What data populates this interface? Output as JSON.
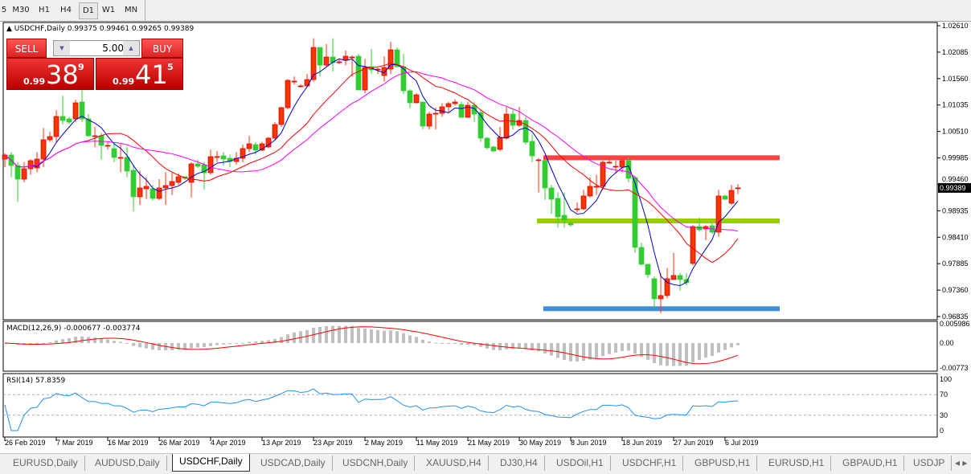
{
  "timeframes": {
    "items": [
      "5",
      "M30",
      "H1",
      "H4",
      "D1",
      "W1",
      "MN"
    ],
    "active": 4
  },
  "chart_header": {
    "symbol": "USDCHF,Daily",
    "ohlc": "0.99375 0.99461 0.99265 0.99389"
  },
  "trade_panel": {
    "sell_label": "SELL",
    "buy_label": "BUY",
    "lot_value": "5.00",
    "sell_price": {
      "prefix": "0.99",
      "big": "38",
      "sup": "9"
    },
    "buy_price": {
      "prefix": "0.99",
      "big": "41",
      "sup": "5"
    }
  },
  "macd_header": "MACD(12,26,9) -0.000677 -0.003774",
  "rsi_header": "RSI(14) 57.8359",
  "bottom_tabs": {
    "items": [
      "EURUSD,Daily",
      "AUDUSD,Daily",
      "USDCHF,Daily",
      "USDCAD,Daily",
      "USDCNH,Daily",
      "XAUUSD,H4",
      "DJ30,H4",
      "USDOil,H1",
      "USDCHF,H1",
      "GBPUSD,H1",
      "EURUSD,H1",
      "GBPAUD,H1",
      "USDJP"
    ],
    "active": 2
  },
  "colors": {
    "bull": "#ff3300",
    "bear": "#33cc33",
    "ma_fast": "#0000cc",
    "ma_mid": "#ff0000",
    "ma_slow": "#ff00ff",
    "macd_hist": "#c0c0c0",
    "macd_signal": "#ff0000",
    "rsi": "#1e90ff"
  },
  "chart_data": {
    "type": "candlestick",
    "y_range": [
      0.96835,
      1.0261
    ],
    "y_ticks": [
      "1.02610",
      "1.02085",
      "1.01560",
      "1.01035",
      "1.00510",
      "0.99985",
      "0.99460",
      "0.98935",
      "0.98410",
      "0.97885",
      "0.97360",
      "0.96835"
    ],
    "current_price": "0.99389",
    "x_labels": [
      {
        "bar": 0,
        "label": "26 Feb 2019"
      },
      {
        "bar": 8,
        "label": "7 Mar 2019"
      },
      {
        "bar": 16,
        "label": "16 Mar 2019"
      },
      {
        "bar": 24,
        "label": "26 Mar 2019"
      },
      {
        "bar": 32,
        "label": "4 Apr 2019"
      },
      {
        "bar": 40,
        "label": "13 Apr 2019"
      },
      {
        "bar": 48,
        "label": "23 Apr 2019"
      },
      {
        "bar": 56,
        "label": "2 May 2019"
      },
      {
        "bar": 64,
        "label": "11 May 2019"
      },
      {
        "bar": 72,
        "label": "21 May 2019"
      },
      {
        "bar": 80,
        "label": "30 May 2019"
      },
      {
        "bar": 88,
        "label": "8 Jun 2019"
      },
      {
        "bar": 96,
        "label": "18 Jun 2019"
      },
      {
        "bar": 104,
        "label": "27 Jun 2019"
      },
      {
        "bar": 112,
        "label": "6 Jul 2019"
      }
    ],
    "levels": [
      {
        "name": "resistance",
        "price": 0.99988,
        "color": "#ff4040",
        "from_bar": 84
      },
      {
        "name": "middle",
        "price": 0.98733,
        "color": "#99cc00",
        "from_bar": 83
      },
      {
        "name": "support",
        "price": 0.9699,
        "color": "#3d8fdc",
        "from_bar": 84
      }
    ],
    "moving_averages": [
      5,
      13,
      21
    ],
    "bars": [
      [
        0.99962,
        1.0008,
        0.998,
        1.00042
      ],
      [
        1.00042,
        1.001,
        0.996,
        0.99834
      ],
      [
        0.99834,
        0.999,
        0.9911,
        0.99563
      ],
      [
        0.99563,
        0.999,
        0.995,
        0.9977
      ],
      [
        0.9977,
        0.9996,
        0.9965,
        0.9993
      ],
      [
        0.99786,
        1.001,
        0.997,
        0.99962
      ],
      [
        0.99962,
        1.0058,
        0.998,
        1.00345
      ],
      [
        1.00345,
        1.005,
        1.003,
        1.00409
      ],
      [
        1.00409,
        1.0093,
        1.003,
        1.00808
      ],
      [
        1.00808,
        1.0122,
        1.0065,
        1.00728
      ],
      [
        1.0076,
        1.008,
        1.0066,
        1.00696
      ],
      [
        1.0076,
        1.0114,
        1.007,
        1.01079
      ],
      [
        1.01095,
        1.0133,
        1.007,
        1.0076
      ],
      [
        1.0076,
        1.0086,
        1.004,
        1.00425
      ],
      [
        1.00425,
        1.006,
        1.002,
        1.00425
      ],
      [
        1.00425,
        1.0048,
        0.9995,
        1.00233
      ],
      [
        1.00233,
        1.003,
        1.0015,
        1.00233
      ],
      [
        1.0017,
        1.003,
        0.999,
        0.99994
      ],
      [
        0.99994,
        1.0025,
        0.997,
        0.99994
      ],
      [
        0.99994,
        1.002,
        0.996,
        0.99723
      ],
      [
        0.99739,
        0.9985,
        0.9892,
        0.99213
      ],
      [
        0.99213,
        0.9973,
        0.9905,
        0.99388
      ],
      [
        0.99372,
        0.996,
        0.9917,
        0.9942
      ],
      [
        0.99372,
        0.9945,
        0.9914,
        0.99181
      ],
      [
        0.99181,
        0.9956,
        0.9915,
        0.99388
      ],
      [
        0.99388,
        0.997,
        0.9905,
        0.99436
      ],
      [
        0.99436,
        0.997,
        0.9925,
        0.99516
      ],
      [
        0.995,
        0.9968,
        0.9945,
        0.99611
      ],
      [
        0.99611,
        0.9962,
        0.9955,
        0.99579
      ],
      [
        0.995,
        0.999,
        0.992,
        0.99866
      ],
      [
        0.99866,
        0.9995,
        0.9978,
        0.99818
      ],
      [
        0.9985,
        0.999,
        0.9936,
        0.99691
      ],
      [
        0.99691,
        1.0015,
        0.9965,
        1.0001
      ],
      [
        1.0001,
        1.0012,
        0.999,
        1.0001
      ],
      [
        1.00026,
        1.001,
        0.9983,
        0.99962
      ],
      [
        0.99978,
        1.0005,
        0.998,
        0.99914
      ],
      [
        0.99914,
        1.001,
        0.9985,
        0.99978
      ],
      [
        0.99978,
        1.0025,
        0.999,
        1.0017
      ],
      [
        1.0017,
        1.0042,
        1.001,
        1.00265
      ],
      [
        1.00249,
        1.003,
        1.0005,
        1.00138
      ],
      [
        1.00138,
        1.003,
        1.0012,
        1.00265
      ],
      [
        1.00202,
        1.004,
        1.0018,
        1.00377
      ],
      [
        1.00377,
        1.007,
        1.0035,
        1.00648
      ],
      [
        1.00648,
        1.01,
        1.006,
        1.00983
      ],
      [
        1.00983,
        1.0155,
        1.0095,
        1.01525
      ],
      [
        1.01509,
        1.016,
        1.0144,
        1.01509
      ],
      [
        1.01414,
        1.0145,
        1.0138,
        1.01414
      ],
      [
        1.01414,
        1.0165,
        1.014,
        1.01541
      ],
      [
        1.01541,
        1.0236,
        1.015,
        1.02179
      ],
      [
        1.02179,
        1.0218,
        1.016,
        1.01828
      ],
      [
        1.01828,
        1.0225,
        1.018,
        1.01988
      ],
      [
        1.01988,
        1.0236,
        1.017,
        1.01876
      ],
      [
        1.01892,
        1.0195,
        1.0185,
        1.01892
      ],
      [
        1.01924,
        1.0212,
        1.0182,
        1.02004
      ],
      [
        1.01988,
        1.0202,
        1.016,
        1.01988
      ],
      [
        1.02004,
        1.0205,
        1.0133,
        1.01334
      ],
      [
        1.01334,
        1.0195,
        1.0127,
        1.01781
      ],
      [
        1.01797,
        1.0215,
        1.0165,
        1.01733
      ],
      [
        1.01749,
        1.0178,
        1.0165,
        1.01749
      ],
      [
        1.01621,
        1.02,
        1.015,
        1.01781
      ],
      [
        1.01749,
        1.0229,
        1.0165,
        1.02132
      ],
      [
        1.02132,
        1.0218,
        1.0178,
        1.01797
      ],
      [
        1.01797,
        1.0205,
        1.0125,
        1.01318
      ],
      [
        1.01318,
        1.0135,
        1.0097,
        1.01079
      ],
      [
        1.01079,
        1.0127,
        1.0107,
        1.01238
      ],
      [
        1.01095,
        1.011,
        1.0055,
        1.00616
      ],
      [
        1.00616,
        1.009,
        1.0055,
        1.00855
      ],
      [
        1.00871,
        1.0098,
        1.0055,
        1.00871
      ],
      [
        1.00871,
        1.0107,
        1.008,
        1.00999
      ],
      [
        1.00999,
        1.011,
        1.009,
        1.01063
      ],
      [
        1.01063,
        1.0115,
        1.0102,
        1.01095
      ],
      [
        1.01047,
        1.011,
        1.0078,
        1.00792
      ],
      [
        1.00792,
        1.011,
        1.0078,
        1.01031
      ],
      [
        1.01031,
        1.011,
        1.007,
        1.00855
      ],
      [
        1.00887,
        1.0095,
        1.003,
        1.00377
      ],
      [
        1.00377,
        1.004,
        1.0015,
        1.00186
      ],
      [
        1.00202,
        1.0023,
        1.001,
        1.00122
      ],
      [
        1.00154,
        1.006,
        1.0012,
        1.00393
      ],
      [
        1.00377,
        1.01,
        1.0035,
        1.00855
      ],
      [
        1.00855,
        1.0094,
        1.0055,
        1.00632
      ],
      [
        1.00632,
        1.01,
        1.006,
        1.00728
      ],
      [
        1.00728,
        1.008,
        1.0025,
        1.00297
      ],
      [
        1.00313,
        1.0045,
        0.999,
        1.00026
      ],
      [
        0.99946,
        0.9998,
        0.993,
        0.99946
      ],
      [
        0.9993,
        0.9995,
        0.9915,
        0.99388
      ],
      [
        0.99388,
        0.9945,
        0.9887,
        0.99165
      ],
      [
        0.99181,
        0.993,
        0.986,
        0.98814
      ],
      [
        0.98846,
        0.993,
        0.986,
        0.9875
      ],
      [
        0.98686,
        0.9872,
        0.9862,
        0.98654
      ],
      [
        0.98973,
        0.991,
        0.989,
        0.98973
      ],
      [
        0.98973,
        0.9935,
        0.9895,
        0.99229
      ],
      [
        0.99229,
        0.996,
        0.992,
        0.9942
      ],
      [
        0.9942,
        0.9965,
        0.9925,
        0.9942
      ],
      [
        0.9942,
        0.9993,
        0.9935,
        0.99898
      ],
      [
        0.99898,
        0.9995,
        0.9987,
        0.99898
      ],
      [
        0.99818,
        0.9993,
        0.997,
        0.99818
      ],
      [
        0.99802,
        0.9998,
        0.997,
        0.9993
      ],
      [
        0.9993,
        1.0,
        0.995,
        0.99579
      ],
      [
        0.99595,
        0.9963,
        0.981,
        0.98208
      ],
      [
        0.98208,
        0.983,
        0.9785,
        0.97873
      ],
      [
        0.97873,
        0.9785,
        0.976,
        0.97666
      ],
      [
        0.97586,
        0.9763,
        0.97,
        0.97187
      ],
      [
        0.97187,
        0.977,
        0.969,
        0.97251
      ],
      [
        0.97251,
        0.978,
        0.972,
        0.97586
      ],
      [
        0.9757,
        0.981,
        0.976,
        0.9765
      ],
      [
        0.9765,
        0.977,
        0.9735,
        0.9757
      ],
      [
        0.9757,
        0.977,
        0.9745,
        0.97506
      ],
      [
        0.97889,
        0.9865,
        0.9785,
        0.98622
      ],
      [
        0.98622,
        0.988,
        0.9852,
        0.98559
      ],
      [
        0.98575,
        0.9865,
        0.9835,
        0.98622
      ],
      [
        0.98638,
        0.987,
        0.9848,
        0.98511
      ],
      [
        0.98511,
        0.9935,
        0.9842,
        0.99229
      ],
      [
        0.99229,
        0.9925,
        0.9915,
        0.99165
      ],
      [
        0.99085,
        0.9945,
        0.9905,
        0.9934
      ],
      [
        0.99375,
        0.99461,
        0.99265,
        0.99389
      ]
    ],
    "macd": {
      "params": [
        12,
        26,
        9
      ],
      "y_ticks": [
        "0.005986",
        "0.00",
        "-0.00773"
      ],
      "range": [
        -0.00773,
        0.005986
      ]
    },
    "rsi": {
      "period": 14,
      "y_ticks": [
        "100",
        "70",
        "30",
        "0"
      ],
      "levels": [
        70,
        30
      ]
    }
  }
}
